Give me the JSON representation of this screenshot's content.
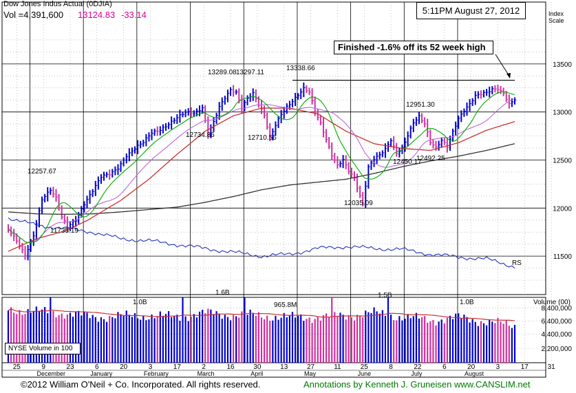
{
  "header": {
    "title": "Dow Jones Indus Actual  (0DJIA)",
    "volume_label": "Vol =4,391,600",
    "price": "13124.83",
    "change": "-33.14",
    "timestamp": "5:11PM August 27, 2012"
  },
  "right_axis": {
    "title_line1": "Index",
    "title_line2": "Scale",
    "volume_title": "Volume (00)"
  },
  "annotation": "Finished -1.6% off its 52 week high",
  "volume_legend": "NYSE Volume in 100",
  "footer": {
    "copyright": "©2012 William O'Neil + Co. Incorporated. All rights reserved.",
    "annotations": "Annotations by Kenneth J. Gruneisen www.CANSLIM.net"
  },
  "colors": {
    "up_bar": "#0000cc",
    "down_bar": "#d0309f",
    "ma_fast": "#00aa00",
    "ma_mid": "#bb66dd",
    "ma_50": "#c83030",
    "ma_200": "#333333",
    "rs_line": "#2233bb",
    "footer_green": "#007700",
    "price_magenta": "#e0009a"
  },
  "chart_data": {
    "type": "candlestick",
    "price_axis": {
      "ticks": [
        11500,
        12000,
        12500,
        13000,
        13500
      ],
      "range": [
        11100,
        13950
      ]
    },
    "volume_axis": {
      "ticks": [
        "2,200,000",
        "4,400,000",
        "6,400,000",
        "8,400,000"
      ],
      "range": [
        0,
        1000000
      ]
    },
    "x_axis": {
      "day_ticks": [
        "25",
        "9",
        "23",
        "6",
        "20",
        "3",
        "17",
        "2",
        "16",
        "30",
        "13",
        "27",
        "11",
        "25",
        "8",
        "22",
        "6",
        "20",
        "3",
        "17",
        "31"
      ],
      "month_labels": [
        "December",
        "January",
        "February",
        "March",
        "April",
        "May",
        "June",
        "July",
        "August"
      ]
    },
    "series_anchors": {
      "close": [
        [
          0,
          11780
        ],
        [
          3,
          11650
        ],
        [
          6,
          11500
        ],
        [
          9,
          11720
        ],
        [
          12,
          12100
        ],
        [
          15,
          12190
        ],
        [
          17,
          12100
        ],
        [
          19,
          11900
        ],
        [
          21,
          11800
        ],
        [
          24,
          11880
        ],
        [
          27,
          12050
        ],
        [
          30,
          12180
        ],
        [
          33,
          12320
        ],
        [
          36,
          12350
        ],
        [
          39,
          12420
        ],
        [
          42,
          12550
        ],
        [
          45,
          12620
        ],
        [
          48,
          12680
        ],
        [
          51,
          12780
        ],
        [
          54,
          12820
        ],
        [
          57,
          12880
        ],
        [
          60,
          12940
        ],
        [
          63,
          12990
        ],
        [
          66,
          12980
        ],
        [
          69,
          13050
        ],
        [
          71,
          12780
        ],
        [
          73,
          12900
        ],
        [
          75,
          13050
        ],
        [
          77,
          13140
        ],
        [
          79,
          13220
        ],
        [
          81,
          13200
        ],
        [
          83,
          13050
        ],
        [
          85,
          13150
        ],
        [
          87,
          13200
        ],
        [
          89,
          13080
        ],
        [
          91,
          12960
        ],
        [
          93,
          12720
        ],
        [
          95,
          12860
        ],
        [
          97,
          12980
        ],
        [
          99,
          13060
        ],
        [
          101,
          13120
        ],
        [
          103,
          13180
        ],
        [
          105,
          13240
        ],
        [
          107,
          13200
        ],
        [
          109,
          13000
        ],
        [
          111,
          12880
        ],
        [
          113,
          12720
        ],
        [
          115,
          12560
        ],
        [
          117,
          12450
        ],
        [
          119,
          12500
        ],
        [
          121,
          12380
        ],
        [
          123,
          12300
        ],
        [
          125,
          12120
        ],
        [
          126,
          12050
        ],
        [
          128,
          12430
        ],
        [
          130,
          12520
        ],
        [
          132,
          12560
        ],
        [
          134,
          12610
        ],
        [
          136,
          12700
        ],
        [
          138,
          12560
        ],
        [
          140,
          12620
        ],
        [
          142,
          12760
        ],
        [
          144,
          12900
        ],
        [
          146,
          12960
        ],
        [
          148,
          12880
        ],
        [
          150,
          12680
        ],
        [
          152,
          12620
        ],
        [
          154,
          12700
        ],
        [
          156,
          12640
        ],
        [
          158,
          12800
        ],
        [
          160,
          12940
        ],
        [
          162,
          13020
        ],
        [
          164,
          13080
        ],
        [
          166,
          13160
        ],
        [
          168,
          13180
        ],
        [
          170,
          13200
        ],
        [
          172,
          13240
        ],
        [
          174,
          13250
        ],
        [
          176,
          13200
        ],
        [
          178,
          13080
        ],
        [
          180,
          13125
        ]
      ],
      "volume": [
        [
          0,
          820000
        ],
        [
          10,
          780000
        ],
        [
          20,
          760000
        ],
        [
          30,
          700000
        ],
        [
          40,
          710000
        ],
        [
          50,
          720000
        ],
        [
          60,
          700000
        ],
        [
          70,
          760000
        ],
        [
          80,
          730000
        ],
        [
          90,
          720000
        ],
        [
          100,
          690000
        ],
        [
          110,
          700000
        ],
        [
          120,
          720000
        ],
        [
          130,
          760000
        ],
        [
          140,
          700000
        ],
        [
          150,
          650000
        ],
        [
          160,
          690000
        ],
        [
          170,
          630000
        ],
        [
          180,
          560000
        ]
      ],
      "ma50": [
        [
          0,
          11550
        ],
        [
          10,
          11680
        ],
        [
          20,
          11760
        ],
        [
          28,
          11870
        ],
        [
          40,
          12080
        ],
        [
          50,
          12300
        ],
        [
          60,
          12560
        ],
        [
          70,
          12800
        ],
        [
          80,
          12960
        ],
        [
          90,
          13040
        ],
        [
          100,
          13040
        ],
        [
          110,
          12980
        ],
        [
          120,
          12800
        ],
        [
          130,
          12670
        ],
        [
          140,
          12620
        ],
        [
          150,
          12600
        ],
        [
          160,
          12680
        ],
        [
          170,
          12810
        ],
        [
          180,
          12900
        ]
      ],
      "ma200": [
        [
          0,
          11960
        ],
        [
          10,
          11940
        ],
        [
          20,
          11935
        ],
        [
          30,
          11940
        ],
        [
          40,
          11960
        ],
        [
          50,
          11985
        ],
        [
          60,
          12010
        ],
        [
          70,
          12060
        ],
        [
          80,
          12120
        ],
        [
          90,
          12190
        ],
        [
          100,
          12240
        ],
        [
          110,
          12270
        ],
        [
          120,
          12300
        ],
        [
          130,
          12360
        ],
        [
          140,
          12430
        ],
        [
          150,
          12490
        ],
        [
          160,
          12540
        ],
        [
          170,
          12600
        ],
        [
          180,
          12670
        ]
      ],
      "rs": [
        [
          0,
          11900
        ],
        [
          10,
          11820
        ],
        [
          20,
          11790
        ],
        [
          30,
          11750
        ],
        [
          40,
          11680
        ],
        [
          50,
          11660
        ],
        [
          60,
          11620
        ],
        [
          70,
          11580
        ],
        [
          80,
          11540
        ],
        [
          90,
          11500
        ],
        [
          100,
          11520
        ],
        [
          110,
          11580
        ],
        [
          120,
          11600
        ],
        [
          130,
          11580
        ],
        [
          140,
          11570
        ],
        [
          150,
          11520
        ],
        [
          160,
          11490
        ],
        [
          170,
          11470
        ],
        [
          180,
          11390
        ]
      ]
    },
    "price_labels": [
      "12257.67",
      "11735.19",
      "12734.86",
      "13289.08",
      "13297.11",
      "12710.56",
      "13338.66",
      "12035.09",
      "12450.17",
      "12951.30",
      "12492.25"
    ],
    "volume_labels": [
      "1.0B",
      "1.6B",
      "965.8M",
      "1.5B",
      "1.0B"
    ],
    "series": [
      {
        "name": "RS",
        "role": "relative strength line"
      }
    ],
    "reference_line": {
      "value": 13330
    }
  }
}
